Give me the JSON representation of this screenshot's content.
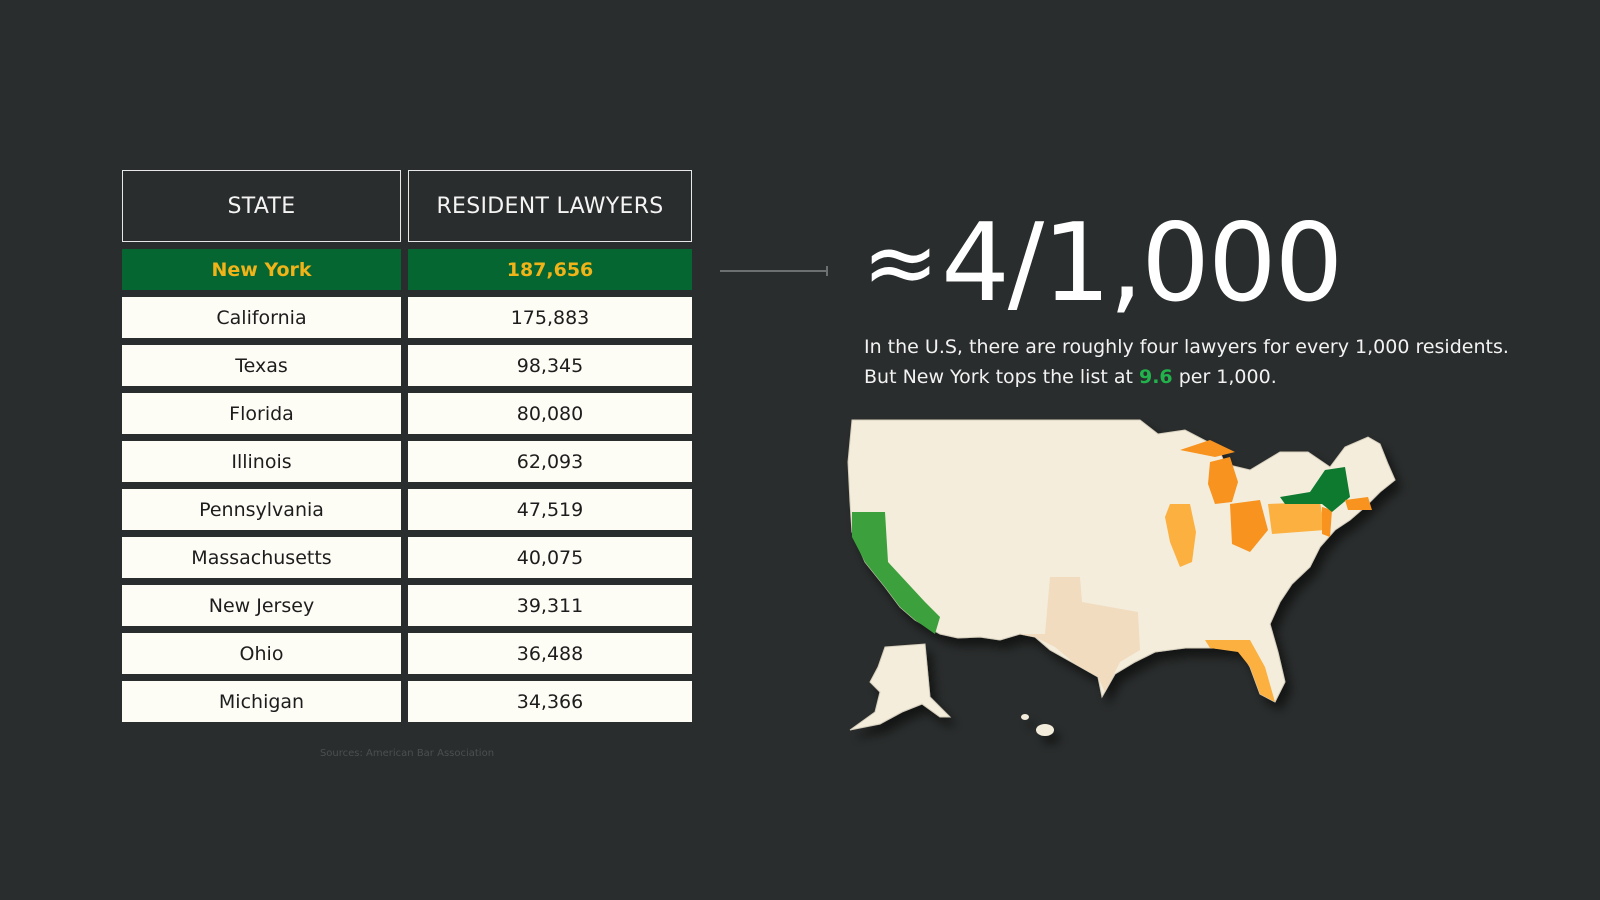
{
  "table": {
    "headers": {
      "state": "STATE",
      "count": "RESIDENT LAWYERS"
    },
    "rows": [
      {
        "state": "New York",
        "count": "187,656"
      },
      {
        "state": "California",
        "count": "175,883"
      },
      {
        "state": "Texas",
        "count": "98,345"
      },
      {
        "state": "Florida",
        "count": "80,080"
      },
      {
        "state": "Illinois",
        "count": "62,093"
      },
      {
        "state": "Pennsylvania",
        "count": "47,519"
      },
      {
        "state": "Massachusetts",
        "count": "40,075"
      },
      {
        "state": "New Jersey",
        "count": "39,311"
      },
      {
        "state": "Ohio",
        "count": "36,488"
      },
      {
        "state": "Michigan",
        "count": "34,366"
      }
    ],
    "source": "Sources: American Bar Association"
  },
  "headline": {
    "approx_symbol": "≈",
    "ratio": "4/1,000"
  },
  "description": {
    "line1": "In the U.S, there are roughly four lawyers for every 1,000 residents.",
    "line2_prefix": "But New York tops the list at ",
    "line2_value": "9.6",
    "line2_suffix": " per 1,000."
  },
  "colors": {
    "background": "#2a2d2d",
    "highlight_row_bg": "#066632",
    "highlight_row_text": "#f0b419",
    "cell_bg": "#fdfcf5",
    "accent_green": "#22b24c",
    "map_base": "#f4eddc",
    "map_top_green": "#3ca03c",
    "map_dark_green": "#0d7a30",
    "map_orange": "#f7931e",
    "map_light_orange": "#fbb040",
    "map_tan": "#f2dcbf"
  },
  "chart_data": {
    "type": "table",
    "columns": [
      "STATE",
      "RESIDENT LAWYERS"
    ],
    "categories": [
      "New York",
      "California",
      "Texas",
      "Florida",
      "Illinois",
      "Pennsylvania",
      "Massachusetts",
      "New Jersey",
      "Ohio",
      "Michigan"
    ],
    "values": [
      187656,
      175883,
      98345,
      80080,
      62093,
      47519,
      40075,
      39311,
      36488,
      34366
    ],
    "highlighted": "New York"
  }
}
